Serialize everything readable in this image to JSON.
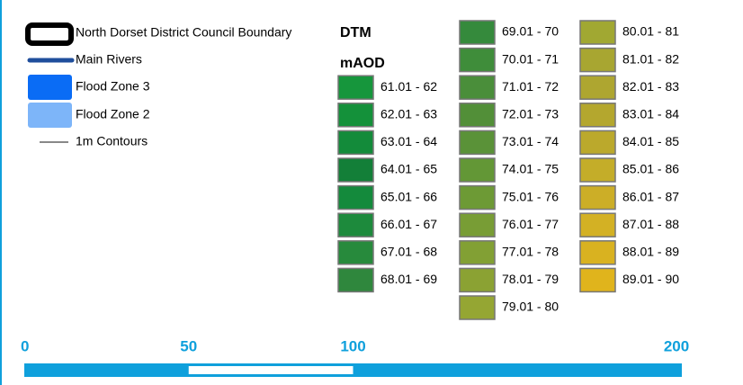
{
  "legend": {
    "items": [
      {
        "label": "North Dorset District Council Boundary"
      },
      {
        "label": "Main Rivers",
        "color": "#1f4e9c"
      },
      {
        "label": "Flood Zone 3",
        "color": "#0a6cf5"
      },
      {
        "label": "Flood Zone 2",
        "color": "#7db5f9"
      },
      {
        "label": "1m Contours",
        "color": "#888888"
      }
    ]
  },
  "dtm": {
    "title": "DTM",
    "unit": "mAOD",
    "classes": [
      {
        "label": "61.01 - 62",
        "color": "#16963c"
      },
      {
        "label": "62.01 - 63",
        "color": "#14913a"
      },
      {
        "label": "63.01 - 64",
        "color": "#138b3a"
      },
      {
        "label": "64.01 - 65",
        "color": "#137f38"
      },
      {
        "label": "65.01 - 66",
        "color": "#148a3c"
      },
      {
        "label": "66.01 - 67",
        "color": "#1d8a3c"
      },
      {
        "label": "67.01 - 68",
        "color": "#278a3c"
      },
      {
        "label": "68.01 - 69",
        "color": "#2f873d"
      },
      {
        "label": "69.01 - 70",
        "color": "#358a3c"
      },
      {
        "label": "70.01 - 71",
        "color": "#3f8d3a"
      },
      {
        "label": "71.01 - 72",
        "color": "#4a8e3a"
      },
      {
        "label": "72.01 - 73",
        "color": "#528f38"
      },
      {
        "label": "73.01 - 74",
        "color": "#5a9238"
      },
      {
        "label": "74.01 - 75",
        "color": "#639736"
      },
      {
        "label": "75.01 - 76",
        "color": "#6d9a35"
      },
      {
        "label": "76.01 - 77",
        "color": "#789d35"
      },
      {
        "label": "77.01 - 78",
        "color": "#82a034"
      },
      {
        "label": "78.01 - 79",
        "color": "#8ba233"
      },
      {
        "label": "79.01 - 80",
        "color": "#95a633"
      },
      {
        "label": "80.01 - 81",
        "color": "#a1a832"
      },
      {
        "label": "81.01 - 82",
        "color": "#a8a631"
      },
      {
        "label": "82.01 - 83",
        "color": "#aea630"
      },
      {
        "label": "83.01 - 84",
        "color": "#b4a72e"
      },
      {
        "label": "84.01 - 85",
        "color": "#bba92c"
      },
      {
        "label": "85.01 - 86",
        "color": "#c4ad29"
      },
      {
        "label": "86.01 - 87",
        "color": "#ccae27"
      },
      {
        "label": "87.01 - 88",
        "color": "#d3b124"
      },
      {
        "label": "88.01 - 89",
        "color": "#d9b220"
      },
      {
        "label": "89.01 - 90",
        "color": "#e0b41c"
      }
    ]
  },
  "scale_bar": {
    "range": [
      0,
      200
    ],
    "ticks": [
      0,
      50,
      100,
      200
    ],
    "color": "#0fa0dc"
  }
}
